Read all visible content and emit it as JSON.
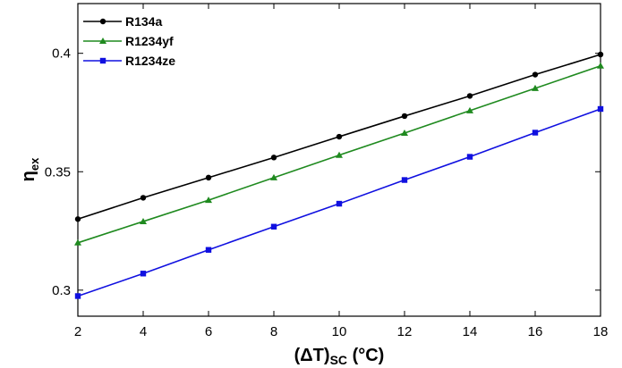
{
  "chart_data": {
    "type": "line",
    "xlabel_main": "(ΔT)",
    "xlabel_sub": "SC",
    "xlabel_unit": " (°C)",
    "ylabel_main": "η",
    "ylabel_sub": "ex",
    "x": [
      2,
      4,
      6,
      8,
      10,
      12,
      14,
      16,
      18
    ],
    "x_ticks": [
      "2",
      "4",
      "6",
      "8",
      "10",
      "12",
      "14",
      "16",
      "18"
    ],
    "y_ticks": [
      "0.3",
      "0.35",
      "0.4"
    ],
    "y_tick_values": [
      0.3,
      0.35,
      0.4
    ],
    "xlim": [
      2,
      18
    ],
    "ylim": [
      0.289,
      0.421
    ],
    "grid": false,
    "legend_position": "top-left",
    "series": [
      {
        "name": "R134a",
        "color": "#000000",
        "marker": "circle",
        "values": [
          0.33,
          0.339,
          0.3475,
          0.356,
          0.3648,
          0.3735,
          0.382,
          0.391,
          0.3995
        ]
      },
      {
        "name": "R1234yf",
        "color": "#1f8a1f",
        "marker": "triangle",
        "values": [
          0.32,
          0.329,
          0.338,
          0.3475,
          0.357,
          0.3663,
          0.3758,
          0.3852,
          0.3947
        ]
      },
      {
        "name": "R1234ze",
        "color": "#1010e0",
        "marker": "square",
        "values": [
          0.2975,
          0.307,
          0.317,
          0.3268,
          0.3365,
          0.3465,
          0.3563,
          0.3665,
          0.3765
        ]
      }
    ]
  }
}
